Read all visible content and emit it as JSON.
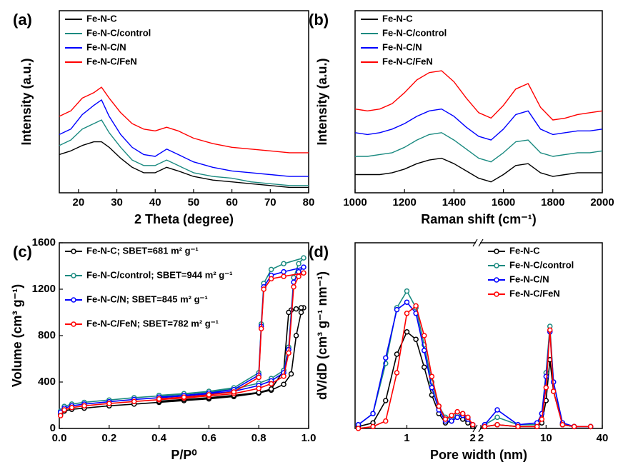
{
  "chart_data": [
    {
      "type": "line",
      "label": "(a)",
      "xlabel": "2 Theta (degree)",
      "ylabel": "Intensity (a.u.)",
      "xlim": [
        15,
        80
      ],
      "xticks": [
        20,
        30,
        40,
        50,
        60,
        70,
        80
      ],
      "ylim": [
        0,
        100
      ],
      "markers": false,
      "legend": "upper left",
      "x": [
        15,
        18,
        21,
        24,
        26,
        28,
        31,
        34,
        37,
        40,
        43,
        46,
        50,
        55,
        60,
        65,
        70,
        75,
        80
      ],
      "series": [
        {
          "name": "Fe-N-C",
          "color": "#000000",
          "values": [
            21,
            23,
            26,
            28,
            28,
            25,
            19,
            14,
            11,
            11,
            14,
            12,
            9,
            7,
            6,
            5,
            4,
            3,
            3
          ]
        },
        {
          "name": "Fe-N-C/control",
          "color": "#1a8a80",
          "values": [
            26,
            29,
            35,
            38,
            40,
            33,
            25,
            18,
            15,
            15,
            18,
            15,
            11,
            9,
            8,
            6,
            5,
            4,
            4
          ]
        },
        {
          "name": "Fe-N-C/N",
          "color": "#0000ff",
          "values": [
            32,
            35,
            43,
            48,
            51,
            42,
            32,
            25,
            21,
            20,
            24,
            21,
            17,
            14,
            12,
            11,
            10,
            9,
            9
          ]
        },
        {
          "name": "Fe-N-C/FeN",
          "color": "#ff0000",
          "values": [
            42,
            45,
            52,
            55,
            58,
            52,
            44,
            38,
            35,
            34,
            36,
            34,
            30,
            27,
            25,
            24,
            23,
            22,
            22
          ]
        }
      ]
    },
    {
      "type": "line",
      "label": "(b)",
      "xlabel": "Raman shift (cm⁻¹)",
      "ylabel": "Intensity (a.u.)",
      "xlim": [
        1000,
        2000
      ],
      "xticks": [
        1000,
        1200,
        1400,
        1600,
        1800,
        2000
      ],
      "ylim": [
        0,
        100
      ],
      "markers": false,
      "legend": "upper left",
      "x": [
        1000,
        1050,
        1100,
        1150,
        1200,
        1250,
        1300,
        1350,
        1400,
        1450,
        1500,
        1550,
        1600,
        1650,
        1700,
        1750,
        1800,
        1850,
        1900,
        1950,
        2000
      ],
      "series": [
        {
          "name": "Fe-N-C",
          "color": "#000000",
          "values": [
            10,
            10,
            10,
            11,
            13,
            16,
            18,
            19,
            16,
            12,
            8,
            6,
            10,
            15,
            16,
            11,
            9,
            10,
            11,
            11,
            11
          ]
        },
        {
          "name": "Fe-N-C/control",
          "color": "#1a8a80",
          "values": [
            20,
            20,
            21,
            22,
            25,
            29,
            32,
            33,
            29,
            24,
            19,
            17,
            22,
            28,
            29,
            22,
            20,
            21,
            22,
            22,
            23
          ]
        },
        {
          "name": "Fe-N-C/N",
          "color": "#0000ff",
          "values": [
            33,
            32,
            33,
            35,
            38,
            42,
            45,
            46,
            42,
            36,
            31,
            29,
            35,
            43,
            45,
            35,
            32,
            33,
            34,
            34,
            35
          ]
        },
        {
          "name": "Fe-N-C/FeN",
          "color": "#ff0000",
          "values": [
            46,
            45,
            46,
            49,
            55,
            62,
            66,
            67,
            61,
            52,
            44,
            41,
            48,
            57,
            60,
            47,
            40,
            41,
            43,
            44,
            45
          ]
        }
      ]
    },
    {
      "type": "line",
      "label": "(c)",
      "xlabel": "P/P⁰",
      "ylabel": "Volume (cm³ g⁻¹)",
      "xlim": [
        0,
        1
      ],
      "xticks": [
        {
          "value": 0,
          "label": "0.0"
        },
        0.2,
        0.4,
        0.6,
        0.8,
        {
          "value": 1,
          "label": "1.0"
        }
      ],
      "ylim": [
        0,
        1600
      ],
      "yticks": [
        0,
        400,
        800,
        1200,
        1600
      ],
      "markers": true,
      "legend": "upper left",
      "series": [
        {
          "name": "Fe-N-C; SBET=681 m² g⁻¹",
          "color": "#000000",
          "x": [
            0.005,
            0.02,
            0.05,
            0.1,
            0.2,
            0.3,
            0.4,
            0.5,
            0.6,
            0.7,
            0.8,
            0.85,
            0.9,
            0.93,
            0.95,
            0.97,
            0.98,
            0.97,
            0.95,
            0.93,
            0.92,
            0.9,
            0.85,
            0.8,
            0.7,
            0.6,
            0.5,
            0.4
          ],
          "values": [
            120,
            150,
            165,
            175,
            195,
            210,
            225,
            240,
            255,
            275,
            305,
            330,
            380,
            470,
            800,
            1000,
            1040,
            1040,
            1030,
            1020,
            1000,
            500,
            340,
            310,
            285,
            265,
            250,
            235
          ]
        },
        {
          "name": "Fe-N-C/control; SBET=944 m² g⁻¹",
          "color": "#1a8a80",
          "x": [
            0.005,
            0.02,
            0.05,
            0.1,
            0.2,
            0.3,
            0.4,
            0.5,
            0.6,
            0.7,
            0.8,
            0.85,
            0.9,
            0.92,
            0.94,
            0.96,
            0.98,
            0.9,
            0.85,
            0.82,
            0.81,
            0.8,
            0.7,
            0.6,
            0.5,
            0.4
          ],
          "values": [
            150,
            190,
            210,
            225,
            245,
            265,
            280,
            295,
            315,
            340,
            390,
            430,
            500,
            700,
            1300,
            1420,
            1470,
            1420,
            1370,
            1250,
            900,
            480,
            350,
            320,
            300,
            285
          ]
        },
        {
          "name": "Fe-N-C/N; SBET=845 m² g⁻¹",
          "color": "#0000ff",
          "x": [
            0.005,
            0.02,
            0.05,
            0.1,
            0.2,
            0.3,
            0.4,
            0.5,
            0.6,
            0.7,
            0.8,
            0.85,
            0.9,
            0.92,
            0.94,
            0.96,
            0.98,
            0.9,
            0.85,
            0.82,
            0.81,
            0.8,
            0.7,
            0.6,
            0.5,
            0.4
          ],
          "values": [
            140,
            175,
            195,
            210,
            230,
            250,
            265,
            280,
            298,
            320,
            370,
            410,
            480,
            680,
            1260,
            1350,
            1390,
            1350,
            1320,
            1220,
            880,
            460,
            335,
            305,
            285,
            270
          ]
        },
        {
          "name": "Fe-N-C/FeN; SBET=782 m² g⁻¹",
          "color": "#ff0000",
          "x": [
            0.005,
            0.02,
            0.05,
            0.1,
            0.2,
            0.3,
            0.4,
            0.5,
            0.6,
            0.7,
            0.8,
            0.85,
            0.9,
            0.92,
            0.94,
            0.96,
            0.98,
            0.9,
            0.85,
            0.82,
            0.81,
            0.8,
            0.7,
            0.6,
            0.5,
            0.4
          ],
          "values": [
            110,
            160,
            180,
            195,
            215,
            232,
            248,
            262,
            280,
            300,
            345,
            385,
            450,
            650,
            1220,
            1310,
            1340,
            1310,
            1290,
            1200,
            860,
            440,
            315,
            290,
            270,
            255
          ]
        }
      ]
    },
    {
      "type": "line",
      "label": "(d)",
      "xlabel": "Pore width (nm)",
      "ylabel": "dV/dD (cm³ g⁻¹ nm⁻¹)",
      "xscale": "log",
      "xsegments": [
        {
          "xlim": [
            0.58,
            2.05
          ],
          "xticks": [
            1,
            2
          ]
        },
        {
          "xlim": [
            2,
            40
          ],
          "xticks": [
            2,
            10,
            40
          ]
        }
      ],
      "ylim": [
        0,
        100
      ],
      "markers": true,
      "legend": "upper right",
      "x": [
        0.6,
        0.7,
        0.8,
        0.9,
        1.0,
        1.1,
        1.2,
        1.3,
        1.4,
        1.5,
        1.6,
        1.7,
        1.8,
        1.9,
        2.0,
        2.2,
        3,
        5,
        8,
        9,
        10,
        11,
        12,
        15,
        20,
        30
      ],
      "series": [
        {
          "name": "Fe-N-C",
          "color": "#000000",
          "values": [
            1,
            3,
            15,
            40,
            52,
            48,
            33,
            18,
            8,
            3,
            4,
            6,
            5,
            3,
            1,
            1,
            2,
            1,
            1,
            3,
            15,
            37,
            20,
            2,
            1,
            1
          ]
        },
        {
          "name": "Fe-N-C/control",
          "color": "#1a8a80",
          "values": [
            2,
            8,
            35,
            65,
            74,
            65,
            45,
            25,
            12,
            6,
            5,
            7,
            8,
            6,
            2,
            2,
            6,
            2,
            2,
            8,
            30,
            55,
            25,
            2,
            1,
            1
          ]
        },
        {
          "name": "Fe-N-C/N",
          "color": "#0000ff",
          "values": [
            2,
            8,
            38,
            64,
            68,
            62,
            42,
            22,
            10,
            4,
            4,
            6,
            7,
            5,
            2,
            2,
            10,
            2,
            3,
            8,
            28,
            52,
            25,
            3,
            1,
            1
          ]
        },
        {
          "name": "Fe-N-C/FeN",
          "color": "#ff0000",
          "values": [
            0,
            1,
            4,
            30,
            62,
            66,
            50,
            28,
            12,
            5,
            7,
            9,
            8,
            6,
            2,
            1,
            2,
            1,
            1,
            5,
            22,
            53,
            20,
            2,
            1,
            1
          ]
        }
      ]
    }
  ]
}
